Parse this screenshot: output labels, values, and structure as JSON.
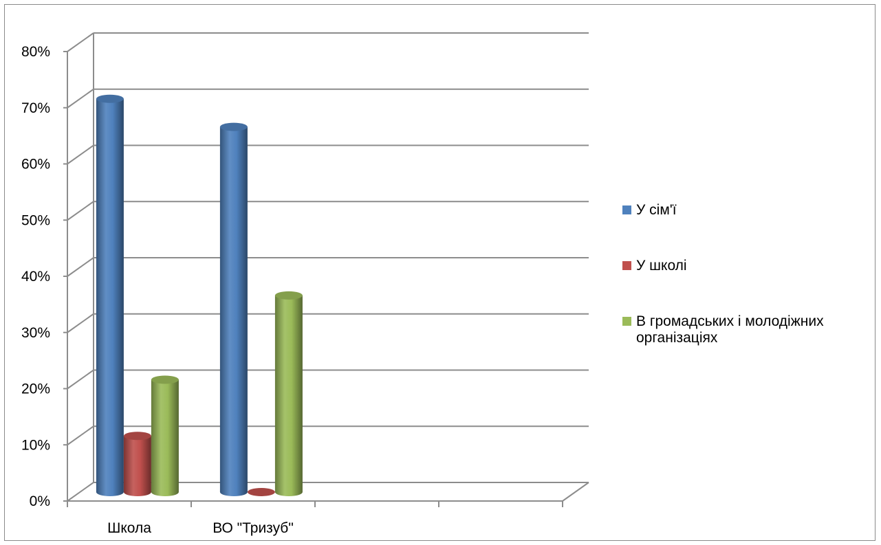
{
  "chart_data": {
    "type": "bar",
    "style": "3d-cylinder",
    "categories": [
      "Школа",
      "ВО \"Тризуб\"",
      "",
      ""
    ],
    "series": [
      {
        "name": "У сім'ї",
        "color": "#4F81BD",
        "values": [
          70,
          65,
          null,
          null
        ]
      },
      {
        "name": "У школі",
        "color": "#C0504D",
        "values": [
          10,
          0,
          null,
          null
        ]
      },
      {
        "name": "В громадських і молодіжних організаціях",
        "color": "#9BBB59",
        "values": [
          20,
          35,
          null,
          null
        ]
      }
    ],
    "y_ticks": [
      "0%",
      "10%",
      "20%",
      "30%",
      "40%",
      "50%",
      "60%",
      "70%",
      "80%"
    ],
    "ylim": [
      0,
      80
    ],
    "y_unit": "%",
    "grid": true,
    "legend": {
      "position": "right",
      "lines": [
        [
          "У сім'ї"
        ],
        [
          "У школі"
        ],
        [
          "В громадських і молодіжних",
          "організаціях"
        ]
      ]
    },
    "title": "",
    "xlabel": "",
    "ylabel": ""
  }
}
